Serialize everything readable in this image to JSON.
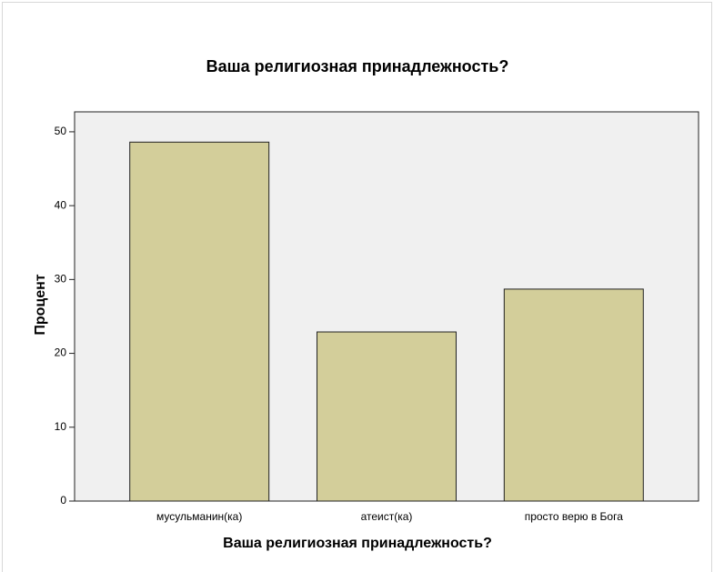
{
  "chart_data": {
    "type": "bar",
    "title": "Ваша религиозная принадлежность?",
    "x_label": "Ваша религиозная принадлежность?",
    "y_label": "Процент",
    "categories": [
      "мусульманин(ка)",
      "атеист(ка)",
      "просто верю в Бога"
    ],
    "values": [
      48.6,
      22.9,
      28.7
    ],
    "color": "#d3ce9a",
    "ylim": [
      0,
      52.7
    ],
    "yticks": [
      0,
      10,
      20,
      30,
      40,
      50
    ]
  }
}
